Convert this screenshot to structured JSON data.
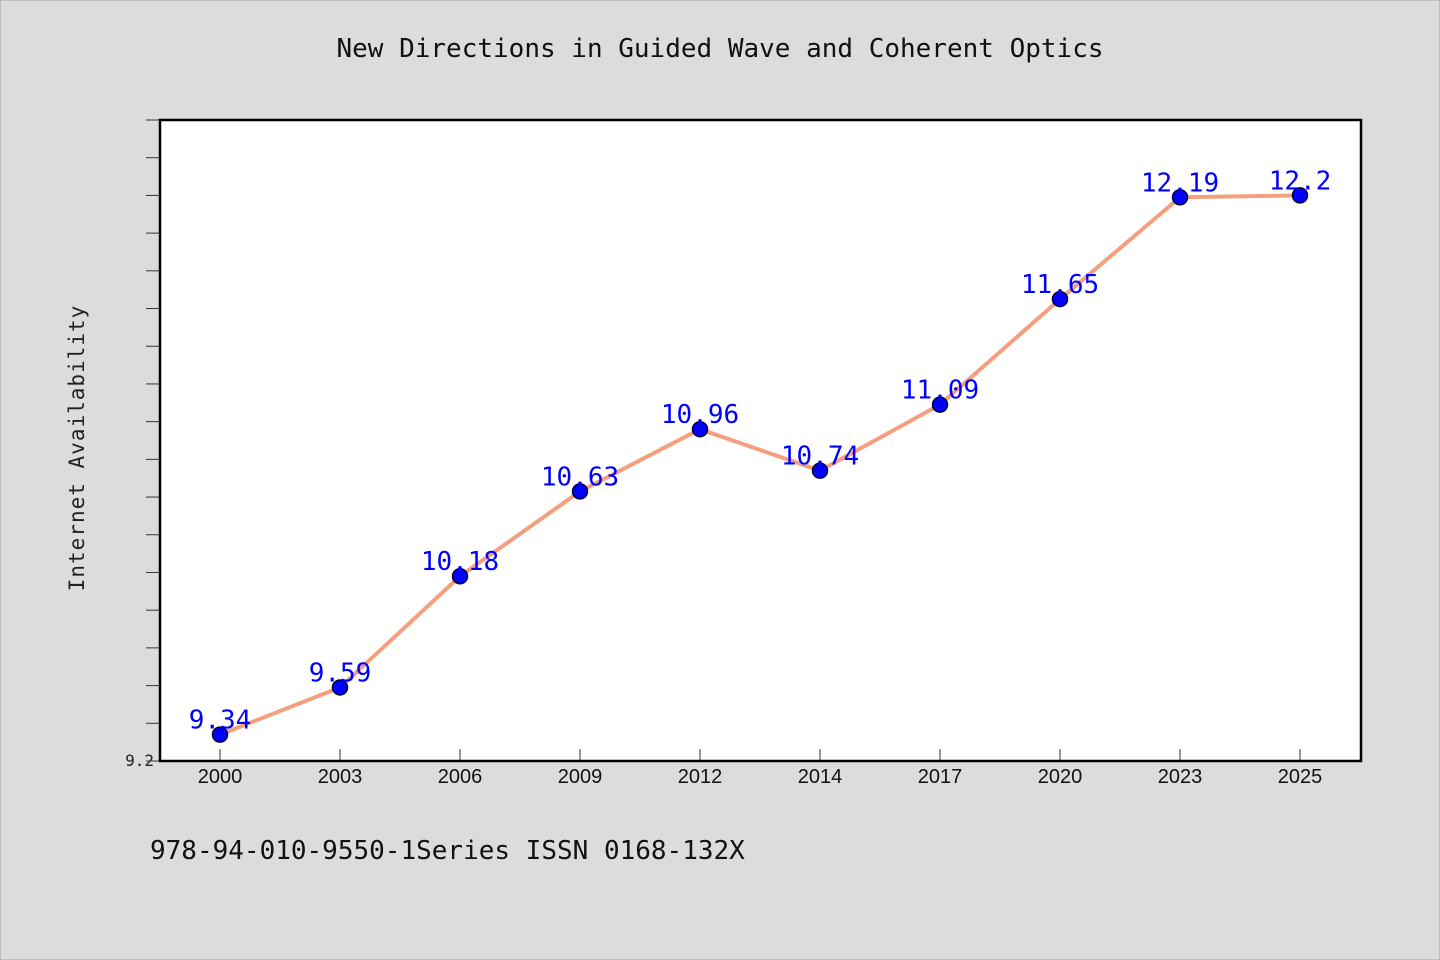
{
  "chart_data": {
    "type": "line",
    "title": "New Directions in Guided Wave and Coherent Optics",
    "ylabel": "Internet Availability",
    "xlabel": "",
    "categories": [
      "2000",
      "2003",
      "2006",
      "2009",
      "2012",
      "2014",
      "2017",
      "2020",
      "2023",
      "2025"
    ],
    "series": [
      {
        "values": [
          9.34,
          9.59,
          10.18,
          10.63,
          10.96,
          10.74,
          11.09,
          11.65,
          12.19,
          12.2
        ],
        "data_labels": [
          "9.34",
          "9.59",
          "10.18",
          "10.63",
          "10.96",
          "10.74",
          "11.09",
          "11.65",
          "12.19",
          "12.2"
        ]
      }
    ],
    "ylim": [
      9.2,
      12.6
    ],
    "y_tick_labels": [
      "9.2"
    ],
    "grid": false,
    "legend": "none",
    "colors": {
      "line": "#f4a07e",
      "marker": "#0000ff",
      "marker_edge": "#000033",
      "data_label": "#0000ff",
      "plot_bg": "#ffffff",
      "page_bg": "#dcdcdc"
    }
  },
  "footer": {
    "text": "978-94-010-9550-1Series ISSN 0168-132X"
  }
}
